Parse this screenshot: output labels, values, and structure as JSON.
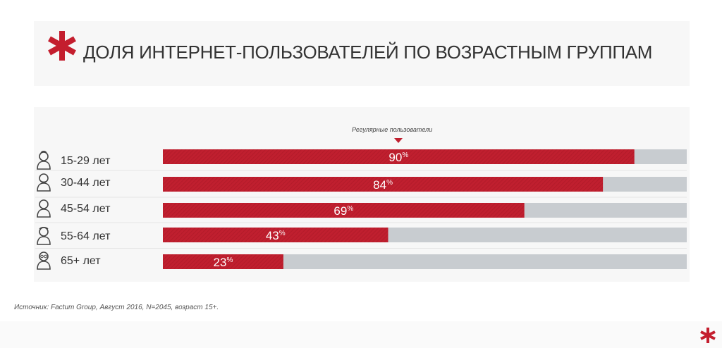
{
  "title": "ДОЛЯ ИНТЕРНЕТ-ПОЛЬЗОВАТЕЛЕЙ ПО ВОЗРАСТНЫМ ГРУППАМ",
  "annotation": "Регулярные пользователи",
  "source": "Источник: Factum Group, Август 2016, N=2045, возраст 15+.",
  "colors": {
    "accent": "#c41e2e",
    "bar_fill": "#c01f2f",
    "bar_track": "#c8ccd0"
  },
  "icons": [
    "young-person-icon",
    "adult-person-icon",
    "middle-aged-person-icon",
    "senior-person-icon",
    "elderly-person-icon"
  ],
  "chart_data": {
    "type": "bar",
    "orientation": "horizontal",
    "stacked_with_remainder": true,
    "categories": [
      "15-29 лет",
      "30-44 лет",
      "45-54 лет",
      "55-64 лет",
      "65+ лет"
    ],
    "values": [
      90,
      84,
      69,
      43,
      23
    ],
    "value_labels": [
      "90",
      "84",
      "69",
      "43",
      "23"
    ],
    "unit": "%",
    "xlim": [
      0,
      100
    ],
    "grid": false
  }
}
